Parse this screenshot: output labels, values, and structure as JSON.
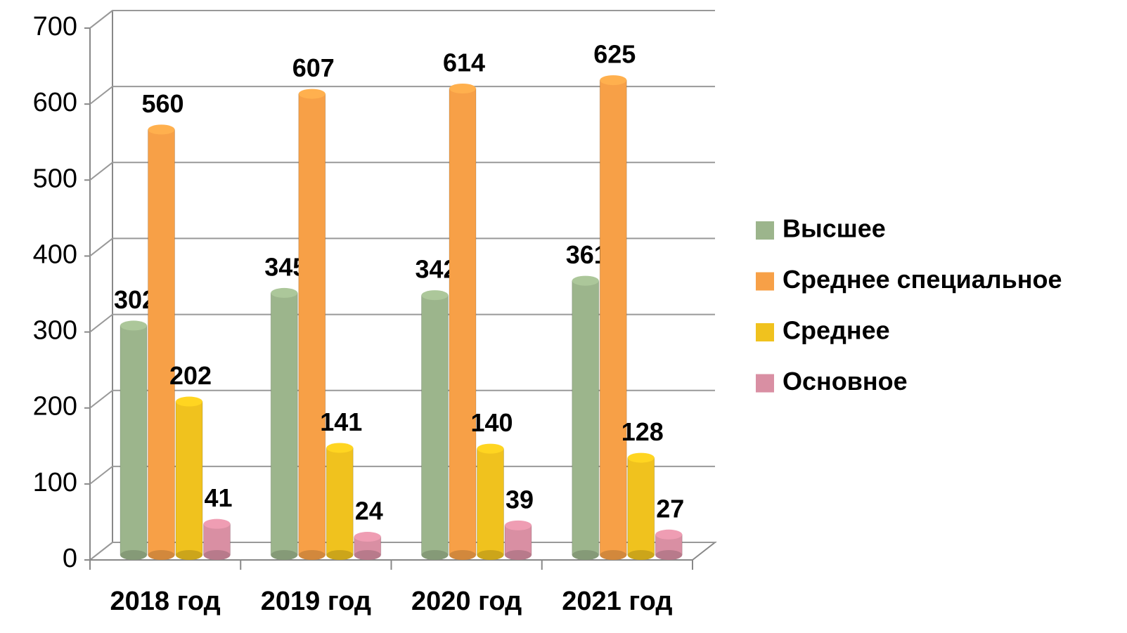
{
  "chart_data": {
    "type": "bar",
    "categories": [
      "2018 год",
      "2019 год",
      "2020 год",
      "2021 год"
    ],
    "series": [
      {
        "name": "Высшее",
        "color": "#9cb58c",
        "values": [
          302,
          345,
          342,
          361
        ]
      },
      {
        "name": "Среднее специальное",
        "color": "#f7a047",
        "values": [
          560,
          607,
          614,
          625
        ]
      },
      {
        "name": "Среднее",
        "color": "#f0c21e",
        "values": [
          202,
          141,
          140,
          128
        ]
      },
      {
        "name": "Основное",
        "color": "#d98fa3",
        "values": [
          41,
          24,
          39,
          27
        ]
      }
    ],
    "ylim": [
      0,
      700
    ],
    "yticks": [
      0,
      100,
      200,
      300,
      400,
      500,
      600,
      700
    ],
    "grid": true,
    "legend": "right"
  }
}
